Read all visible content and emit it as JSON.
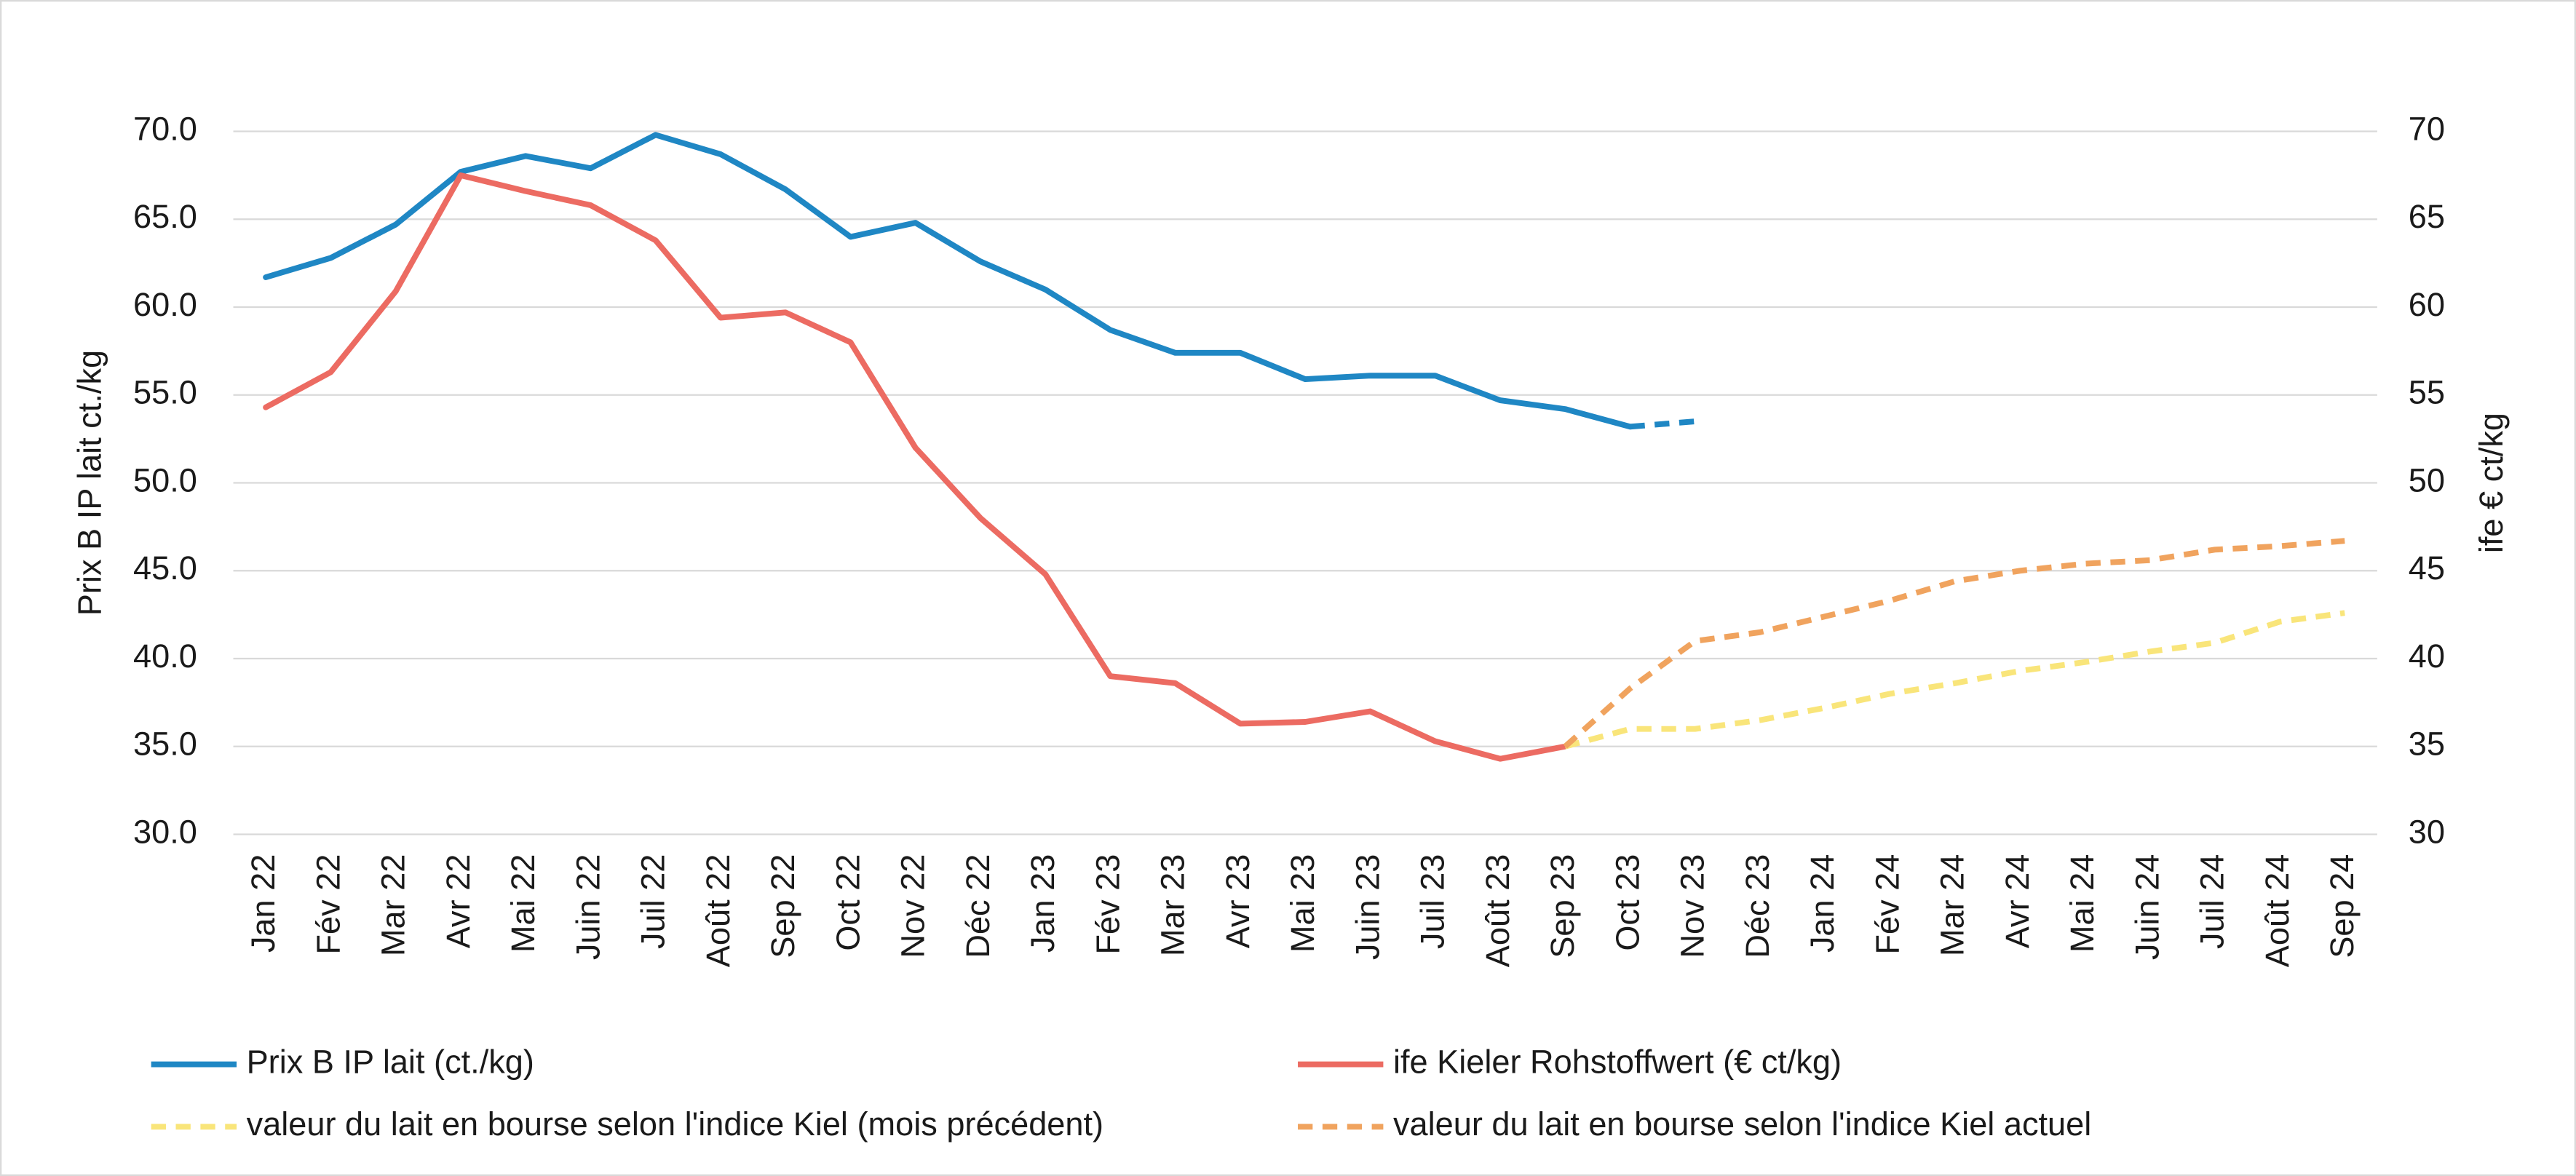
{
  "chart_data": {
    "type": "line",
    "y_label": "Prix B IP lait ct./kg",
    "y2_label": "ife € ct/kg",
    "categories": [
      "Jan 22",
      "Fév 22",
      "Mar 22",
      "Avr 22",
      "Mai 22",
      "Juin 22",
      "Juil 22",
      "Août 22",
      "Sep 22",
      "Oct 22",
      "Nov 22",
      "Déc 22",
      "Jan 23",
      "Fév 23",
      "Mar 23",
      "Avr 23",
      "Mai 23",
      "Juin 23",
      "Juil 23",
      "Août 23",
      "Sep 23",
      "Oct 23",
      "Nov 23",
      "Déc 23",
      "Jan 24",
      "Fév 24",
      "Mar 24",
      "Avr 24",
      "Mai 24",
      "Juin 24",
      "Juil 24",
      "Août 24",
      "Sep 24"
    ],
    "ylim": [
      30,
      70
    ],
    "yticks": [
      {
        "value": 30,
        "label": "30.0"
      },
      {
        "value": 35,
        "label": "35.0"
      },
      {
        "value": 40,
        "label": "40.0"
      },
      {
        "value": 45,
        "label": "45.0"
      },
      {
        "value": 50,
        "label": "50.0"
      },
      {
        "value": 55,
        "label": "55.0"
      },
      {
        "value": 60,
        "label": "60.0"
      },
      {
        "value": 65,
        "label": "65.0"
      },
      {
        "value": 70,
        "label": "70.0"
      }
    ],
    "y2lim": [
      30,
      70
    ],
    "y2ticks": [
      30,
      35,
      40,
      45,
      50,
      55,
      60,
      65,
      70
    ],
    "grid": true,
    "legend": "bottom",
    "series": [
      {
        "name": "Prix B IP lait (ct./kg)",
        "color": "#1f87c4",
        "dash": false,
        "dash_from": 21,
        "values": [
          61.7,
          62.8,
          64.7,
          67.7,
          68.6,
          67.9,
          69.8,
          68.7,
          66.7,
          64.0,
          64.8,
          62.6,
          61.0,
          58.7,
          57.4,
          57.4,
          55.9,
          56.1,
          56.1,
          54.7,
          54.2,
          53.2,
          53.5,
          null,
          null,
          null,
          null,
          null,
          null,
          null,
          null,
          null,
          null
        ]
      },
      {
        "name": "ife Kieler Rohstoffwert (€ ct/kg)",
        "color": "#ec6b62",
        "dash": false,
        "axis": "y2",
        "values": [
          54.3,
          56.3,
          60.9,
          67.5,
          66.6,
          65.8,
          63.8,
          59.4,
          59.7,
          58.0,
          52.0,
          48.0,
          44.8,
          39.0,
          38.6,
          36.3,
          36.4,
          37.0,
          35.3,
          34.3,
          35.0,
          null,
          null,
          null,
          null,
          null,
          null,
          null,
          null,
          null,
          null,
          null,
          null
        ]
      },
      {
        "name": "valeur du lait en bourse selon l'indice Kiel (mois précédent)",
        "color": "#f9e57a",
        "dash": true,
        "axis": "y2",
        "values": [
          null,
          null,
          null,
          null,
          null,
          null,
          null,
          null,
          null,
          null,
          null,
          null,
          null,
          null,
          null,
          null,
          null,
          null,
          null,
          null,
          35.0,
          36.0,
          36.0,
          36.5,
          37.2,
          38.0,
          38.6,
          39.3,
          39.8,
          40.4,
          40.9,
          42.1,
          42.6
        ]
      },
      {
        "name": "valeur du lait en bourse selon l'indice Kiel actuel",
        "color": "#f0a35e",
        "dash": true,
        "axis": "y2",
        "values": [
          null,
          null,
          null,
          null,
          null,
          null,
          null,
          null,
          null,
          null,
          null,
          null,
          null,
          null,
          null,
          null,
          null,
          null,
          null,
          null,
          35.0,
          38.3,
          41.0,
          41.5,
          42.4,
          43.3,
          44.4,
          45.0,
          45.4,
          45.6,
          46.2,
          46.4,
          46.7
        ]
      }
    ]
  }
}
